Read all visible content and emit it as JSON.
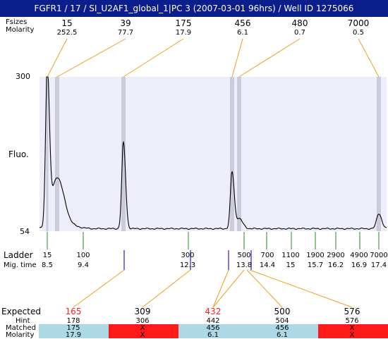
{
  "title": "FGFR1 / 17 / SI_U2AF1_global_1|PC 3 (2007-03-01 96hrs) / Well ID 1275066",
  "labels": {
    "peak_sizes": "Fsizes",
    "molarity_top": "Molarity",
    "fluo": "Fluo.",
    "ladder": "Ladder",
    "mig_time": "Mig. time",
    "expected": "Expected",
    "hint": "Hint",
    "matched": "Matched",
    "molarity_bottom": "Molarity"
  },
  "y_ticks": [
    "300",
    "54"
  ],
  "colors": {
    "title_bg": "#0c1d8c",
    "plot_bg": "#eeeefa",
    "orange": "#f0a020",
    "green": "#228b22",
    "blue": "#2020cc",
    "expected_red": "#ff2020",
    "matched_ok": "#add8e6",
    "matched_bad": "#ff1a1a"
  },
  "chart_data": {
    "type": "line",
    "ylabel": "Fluo.",
    "ylim": [
      54,
      300
    ],
    "peaks": [
      {
        "size": "15",
        "molarity": "252.5",
        "x_ladder": 15,
        "height": 300,
        "width": 3
      },
      {
        "size": "39",
        "molarity": "77.7",
        "x_ladder": 39,
        "height": 140,
        "width": 10
      },
      {
        "size": "175",
        "molarity": "17.9",
        "x_ladder": 175,
        "height": 195,
        "width": 3
      },
      {
        "size": "456",
        "molarity": "6.1",
        "x_ladder": 456,
        "height": 148,
        "width": 3
      },
      {
        "size": "480",
        "molarity": "0.7",
        "x_ladder": 480,
        "height": 74,
        "width": 5
      },
      {
        "size": "7000",
        "molarity": "0.5",
        "x_ladder": 7000,
        "height": 82,
        "width": 4
      }
    ],
    "ladder": [
      {
        "size": "15",
        "mig_time": "8.5"
      },
      {
        "size": "100",
        "mig_time": "9.4"
      },
      {
        "size": "300",
        "mig_time": "12.3"
      },
      {
        "size": "500",
        "mig_time": "13.8"
      },
      {
        "size": "700",
        "mig_time": "14.4"
      },
      {
        "size": "1100",
        "mig_time": "15"
      },
      {
        "size": "1900",
        "mig_time": "15.7"
      },
      {
        "size": "2900",
        "mig_time": "16.2"
      },
      {
        "size": "4900",
        "mig_time": "16.9"
      },
      {
        "size": "7000",
        "mig_time": "17.4"
      }
    ],
    "expected": [
      {
        "expected": "165",
        "hint": "178",
        "matched": "175",
        "molarity": "17.9",
        "expected_red": true,
        "ok": true
      },
      {
        "expected": "309",
        "hint": "306",
        "matched": "X",
        "molarity": "X",
        "expected_red": false,
        "ok": false
      },
      {
        "expected": "432",
        "hint": "442",
        "matched": "456",
        "molarity": "6.1",
        "expected_red": true,
        "ok": true
      },
      {
        "expected": "500",
        "hint": "504",
        "matched": "456",
        "molarity": "6.1",
        "expected_red": false,
        "ok": true
      },
      {
        "expected": "576",
        "hint": "576",
        "matched": "X",
        "molarity": "X",
        "expected_red": false,
        "ok": false
      }
    ]
  }
}
